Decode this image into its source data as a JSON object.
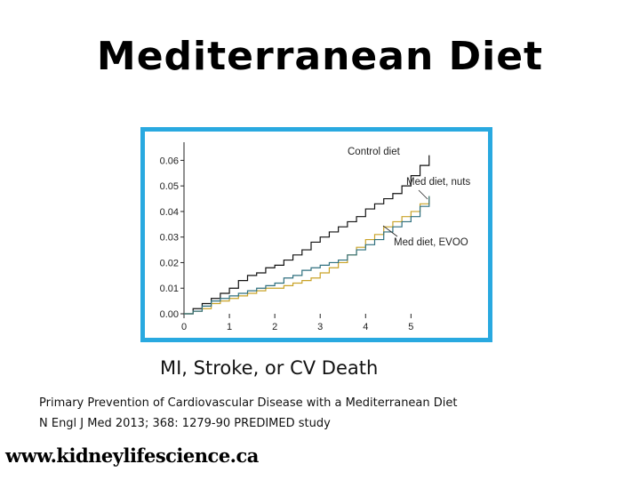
{
  "slide": {
    "title": "Mediterranean Diet",
    "caption": "MI, Stroke, or CV Death",
    "reference_line1": "Primary Prevention of Cardiovascular Disease with a Mediterranean Diet",
    "reference_line2": "N Engl J Med 2013; 368: 1279-90 PREDIMED study",
    "website": "www.kidneylifescience.ca",
    "frame_color": "#29a9e0"
  },
  "chart_data": {
    "type": "line",
    "title": "",
    "xlabel": "",
    "ylabel": "",
    "xlim": [
      0,
      5.6
    ],
    "ylim": [
      0,
      0.065
    ],
    "x_ticks": [
      "0",
      "1",
      "2",
      "3",
      "4",
      "5"
    ],
    "y_ticks": [
      "0.00",
      "0.01",
      "0.02",
      "0.03",
      "0.04",
      "0.05",
      "0.06"
    ],
    "grid": false,
    "legend": "inline labels",
    "series": [
      {
        "name": "Control diet",
        "color": "#111111",
        "x": [
          0,
          0.2,
          0.4,
          0.6,
          0.8,
          1.0,
          1.2,
          1.4,
          1.6,
          1.8,
          2.0,
          2.2,
          2.4,
          2.6,
          2.8,
          3.0,
          3.2,
          3.4,
          3.6,
          3.8,
          4.0,
          4.2,
          4.4,
          4.6,
          4.8,
          5.0,
          5.2,
          5.4
        ],
        "y": [
          0,
          0.002,
          0.004,
          0.006,
          0.008,
          0.01,
          0.013,
          0.015,
          0.016,
          0.018,
          0.019,
          0.021,
          0.023,
          0.025,
          0.028,
          0.03,
          0.032,
          0.034,
          0.036,
          0.038,
          0.041,
          0.043,
          0.045,
          0.047,
          0.05,
          0.054,
          0.058,
          0.062
        ]
      },
      {
        "name": "Med diet, nuts",
        "color": "#c9a227",
        "x": [
          0,
          0.2,
          0.4,
          0.6,
          0.8,
          1.0,
          1.2,
          1.4,
          1.6,
          1.8,
          2.0,
          2.2,
          2.4,
          2.6,
          2.8,
          3.0,
          3.2,
          3.4,
          3.6,
          3.8,
          4.0,
          4.2,
          4.4,
          4.6,
          4.8,
          5.0,
          5.2,
          5.4
        ],
        "y": [
          0,
          0.001,
          0.002,
          0.004,
          0.005,
          0.006,
          0.007,
          0.008,
          0.009,
          0.01,
          0.01,
          0.011,
          0.012,
          0.013,
          0.014,
          0.016,
          0.018,
          0.02,
          0.023,
          0.026,
          0.029,
          0.031,
          0.034,
          0.036,
          0.038,
          0.04,
          0.043,
          0.046
        ]
      },
      {
        "name": "Med diet, EVOO",
        "color": "#2e6f7e",
        "x": [
          0,
          0.2,
          0.4,
          0.6,
          0.8,
          1.0,
          1.2,
          1.4,
          1.6,
          1.8,
          2.0,
          2.2,
          2.4,
          2.6,
          2.8,
          3.0,
          3.2,
          3.4,
          3.6,
          3.8,
          4.0,
          4.2,
          4.4,
          4.6,
          4.8,
          5.0,
          5.2,
          5.4
        ],
        "y": [
          0,
          0.001,
          0.003,
          0.005,
          0.006,
          0.007,
          0.008,
          0.009,
          0.01,
          0.011,
          0.012,
          0.014,
          0.015,
          0.017,
          0.018,
          0.019,
          0.02,
          0.021,
          0.023,
          0.025,
          0.027,
          0.029,
          0.032,
          0.034,
          0.036,
          0.038,
          0.042,
          0.046
        ]
      }
    ]
  }
}
